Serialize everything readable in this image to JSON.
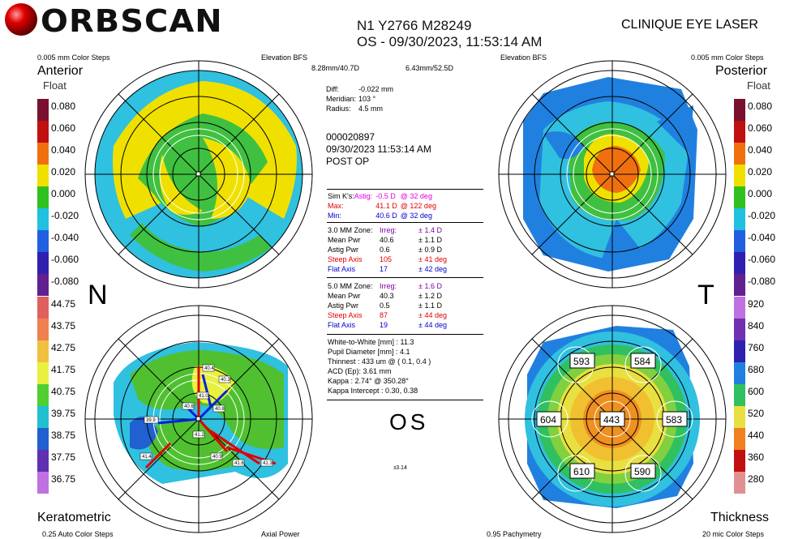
{
  "brand": "ORBSCAN",
  "header": {
    "patient_line": "N1 Y2766 M28249",
    "eye_date": "OS - 09/30/2023, 11:53:14 AM",
    "clinic": "CLINIQUE EYE LASER"
  },
  "anterior": {
    "color_steps": "0.005 mm Color Steps",
    "map_type": "Elevation BFS",
    "title": "Anterior",
    "subtitle": "Float",
    "bfs": "8.28mm/40.7D",
    "scale_labels": [
      "0.080",
      "0.060",
      "0.040",
      "0.020",
      "0.000",
      "-0.020",
      "-0.040",
      "-0.060",
      "-0.080"
    ]
  },
  "posterior": {
    "color_steps": "0.005 mm Color Steps",
    "map_type": "Elevation BFS",
    "title": "Posterior",
    "subtitle": "Float",
    "bfs": "6.43mm/52.5D",
    "scale_labels": [
      "0.080",
      "0.060",
      "0.040",
      "0.020",
      "0.000",
      "-0.020",
      "-0.040",
      "-0.060",
      "-0.080"
    ]
  },
  "keratometric": {
    "title": "Keratometric",
    "color_steps": "0.25 Auto Color Steps",
    "map_type": "Axial Power",
    "scale_labels": [
      "44.75",
      "43.75",
      "42.75",
      "41.75",
      "40.75",
      "39.75",
      "38.75",
      "37.75",
      "36.75"
    ],
    "markers": [
      "40.4",
      "40.3",
      "41.0",
      "40.8",
      "40.6",
      "39.9",
      "41.2",
      "40.9",
      "41.4",
      "41.6",
      "41.3"
    ]
  },
  "thickness": {
    "title": "Thickness",
    "color_steps": "20 mic Color Steps",
    "map_type": "0.95 Pachymetry",
    "scale_labels": [
      "920",
      "840",
      "760",
      "680",
      "600",
      "520",
      "440",
      "360",
      "280"
    ],
    "values": {
      "center": "443",
      "sup_t": "593",
      "sup_n": "584",
      "temp": "604",
      "nasal": "583",
      "inf_t": "610",
      "inf_n": "590"
    }
  },
  "side_labels": {
    "left": "N",
    "right": "T",
    "eye": "OS"
  },
  "diff": {
    "diff_label": "Diff:",
    "diff_value": "-0.022 mm",
    "meridian_label": "Meridian:",
    "meridian_value": "103 °",
    "radius_label": "Radius:",
    "radius_value": "4.5 mm"
  },
  "exam": {
    "id": "000020897",
    "datetime": "09/30/2023 11:53:14 AM",
    "note": "POST OP"
  },
  "simk": {
    "label": "Sim K's:",
    "astig_label": "Astig:",
    "astig_val": "-0.5 D",
    "astig_deg": "@ 32 deg",
    "max_label": "Max:",
    "max_val": "41.1 D",
    "max_deg": "@ 122 deg",
    "min_label": "Min:",
    "min_val": "40.6 D",
    "min_deg": "@ 32 deg"
  },
  "zone3": {
    "label": "3.0 MM Zone:",
    "irreg_label": "Irreg:",
    "irreg_val": "± 1.4 D",
    "mean_label": "Mean Pwr",
    "mean_val": "40.6",
    "mean_pm": "± 1.1 D",
    "astig_label": "Astig Pwr",
    "astig_val": "0.6",
    "astig_pm": "± 0.9 D",
    "steep_label": "Steep Axis",
    "steep_val": "105",
    "steep_pm": "± 41 deg",
    "flat_label": "Flat Axis",
    "flat_val": "17",
    "flat_pm": "± 42 deg"
  },
  "zone5": {
    "label": "5.0 MM Zone:",
    "irreg_label": "Irreg:",
    "irreg_val": "± 1.6 D",
    "mean_label": "Mean Pwr",
    "mean_val": "40.3",
    "mean_pm": "± 1.2 D",
    "astig_label": "Astig Pwr",
    "astig_val": "0.5",
    "astig_pm": "± 1.1 D",
    "steep_label": "Steep Axis",
    "steep_val": "87",
    "steep_pm": "± 44 deg",
    "flat_label": "Flat Axis",
    "flat_val": "19",
    "flat_pm": "± 44 deg"
  },
  "misc": {
    "wtw": "White-to-White [mm] : 11.3",
    "pupil": "Pupil Diameter [mm] :  4.1",
    "thinnest": "Thinnest : 433 um @ ( 0.1, 0.4 )",
    "acd": "ACD (Ep): 3.61 mm",
    "kappa": "Kappa : 2.74° @ 350.28°",
    "kappa_int": "Kappa Intercept : 0.30, 0.38",
    "version": "з3.14"
  },
  "colors": {
    "accent_red": "#e00000",
    "accent_blue": "#0000d0",
    "accent_pink": "#e000e0"
  }
}
